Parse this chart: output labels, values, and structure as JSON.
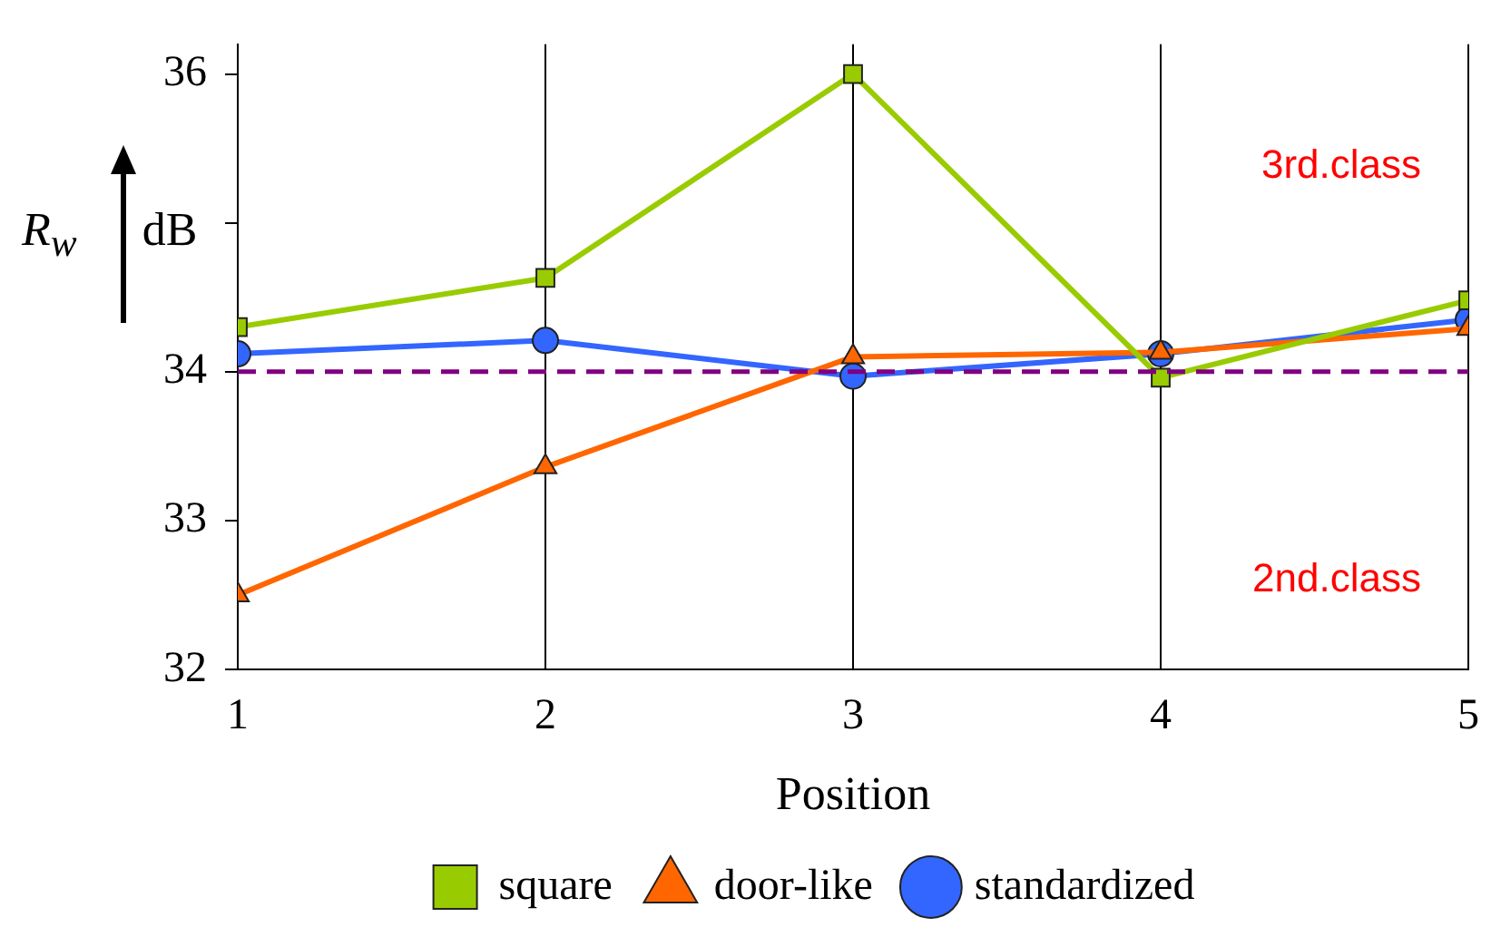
{
  "chart_data": {
    "type": "line",
    "xlabel": "Position",
    "ylabel": "R$_{w}$ dB",
    "x": [
      1,
      2,
      3,
      4,
      5
    ],
    "xlim": [
      1,
      5
    ],
    "xticks": [
      1,
      2,
      3,
      4,
      5
    ],
    "ylim": [
      32,
      36.2
    ],
    "yticks": [
      32,
      33,
      34,
      {
        "value": 35,
        "label": null
      },
      36
    ],
    "series": [
      {
        "name": "square",
        "color": "#99cc00",
        "marker": "square",
        "values": [
          34.3,
          34.63,
          36.0,
          33.96,
          34.48
        ]
      },
      {
        "name": "door-like",
        "color": "#ff6600",
        "marker": "triangle",
        "values": [
          32.5,
          33.36,
          34.1,
          34.13,
          34.29
        ]
      },
      {
        "name": "standardized",
        "color": "#3366ff",
        "marker": "circle",
        "values": [
          34.12,
          34.21,
          33.97,
          34.12,
          34.35
        ]
      }
    ],
    "ref_lines": [
      {
        "axis": "y",
        "value": 34,
        "color": "#800080",
        "line_style": "dashed"
      }
    ],
    "annotations": [
      "3rd.class",
      "2nd.class"
    ],
    "grid": "x",
    "legend": "bottom",
    "line_style": "solid"
  }
}
